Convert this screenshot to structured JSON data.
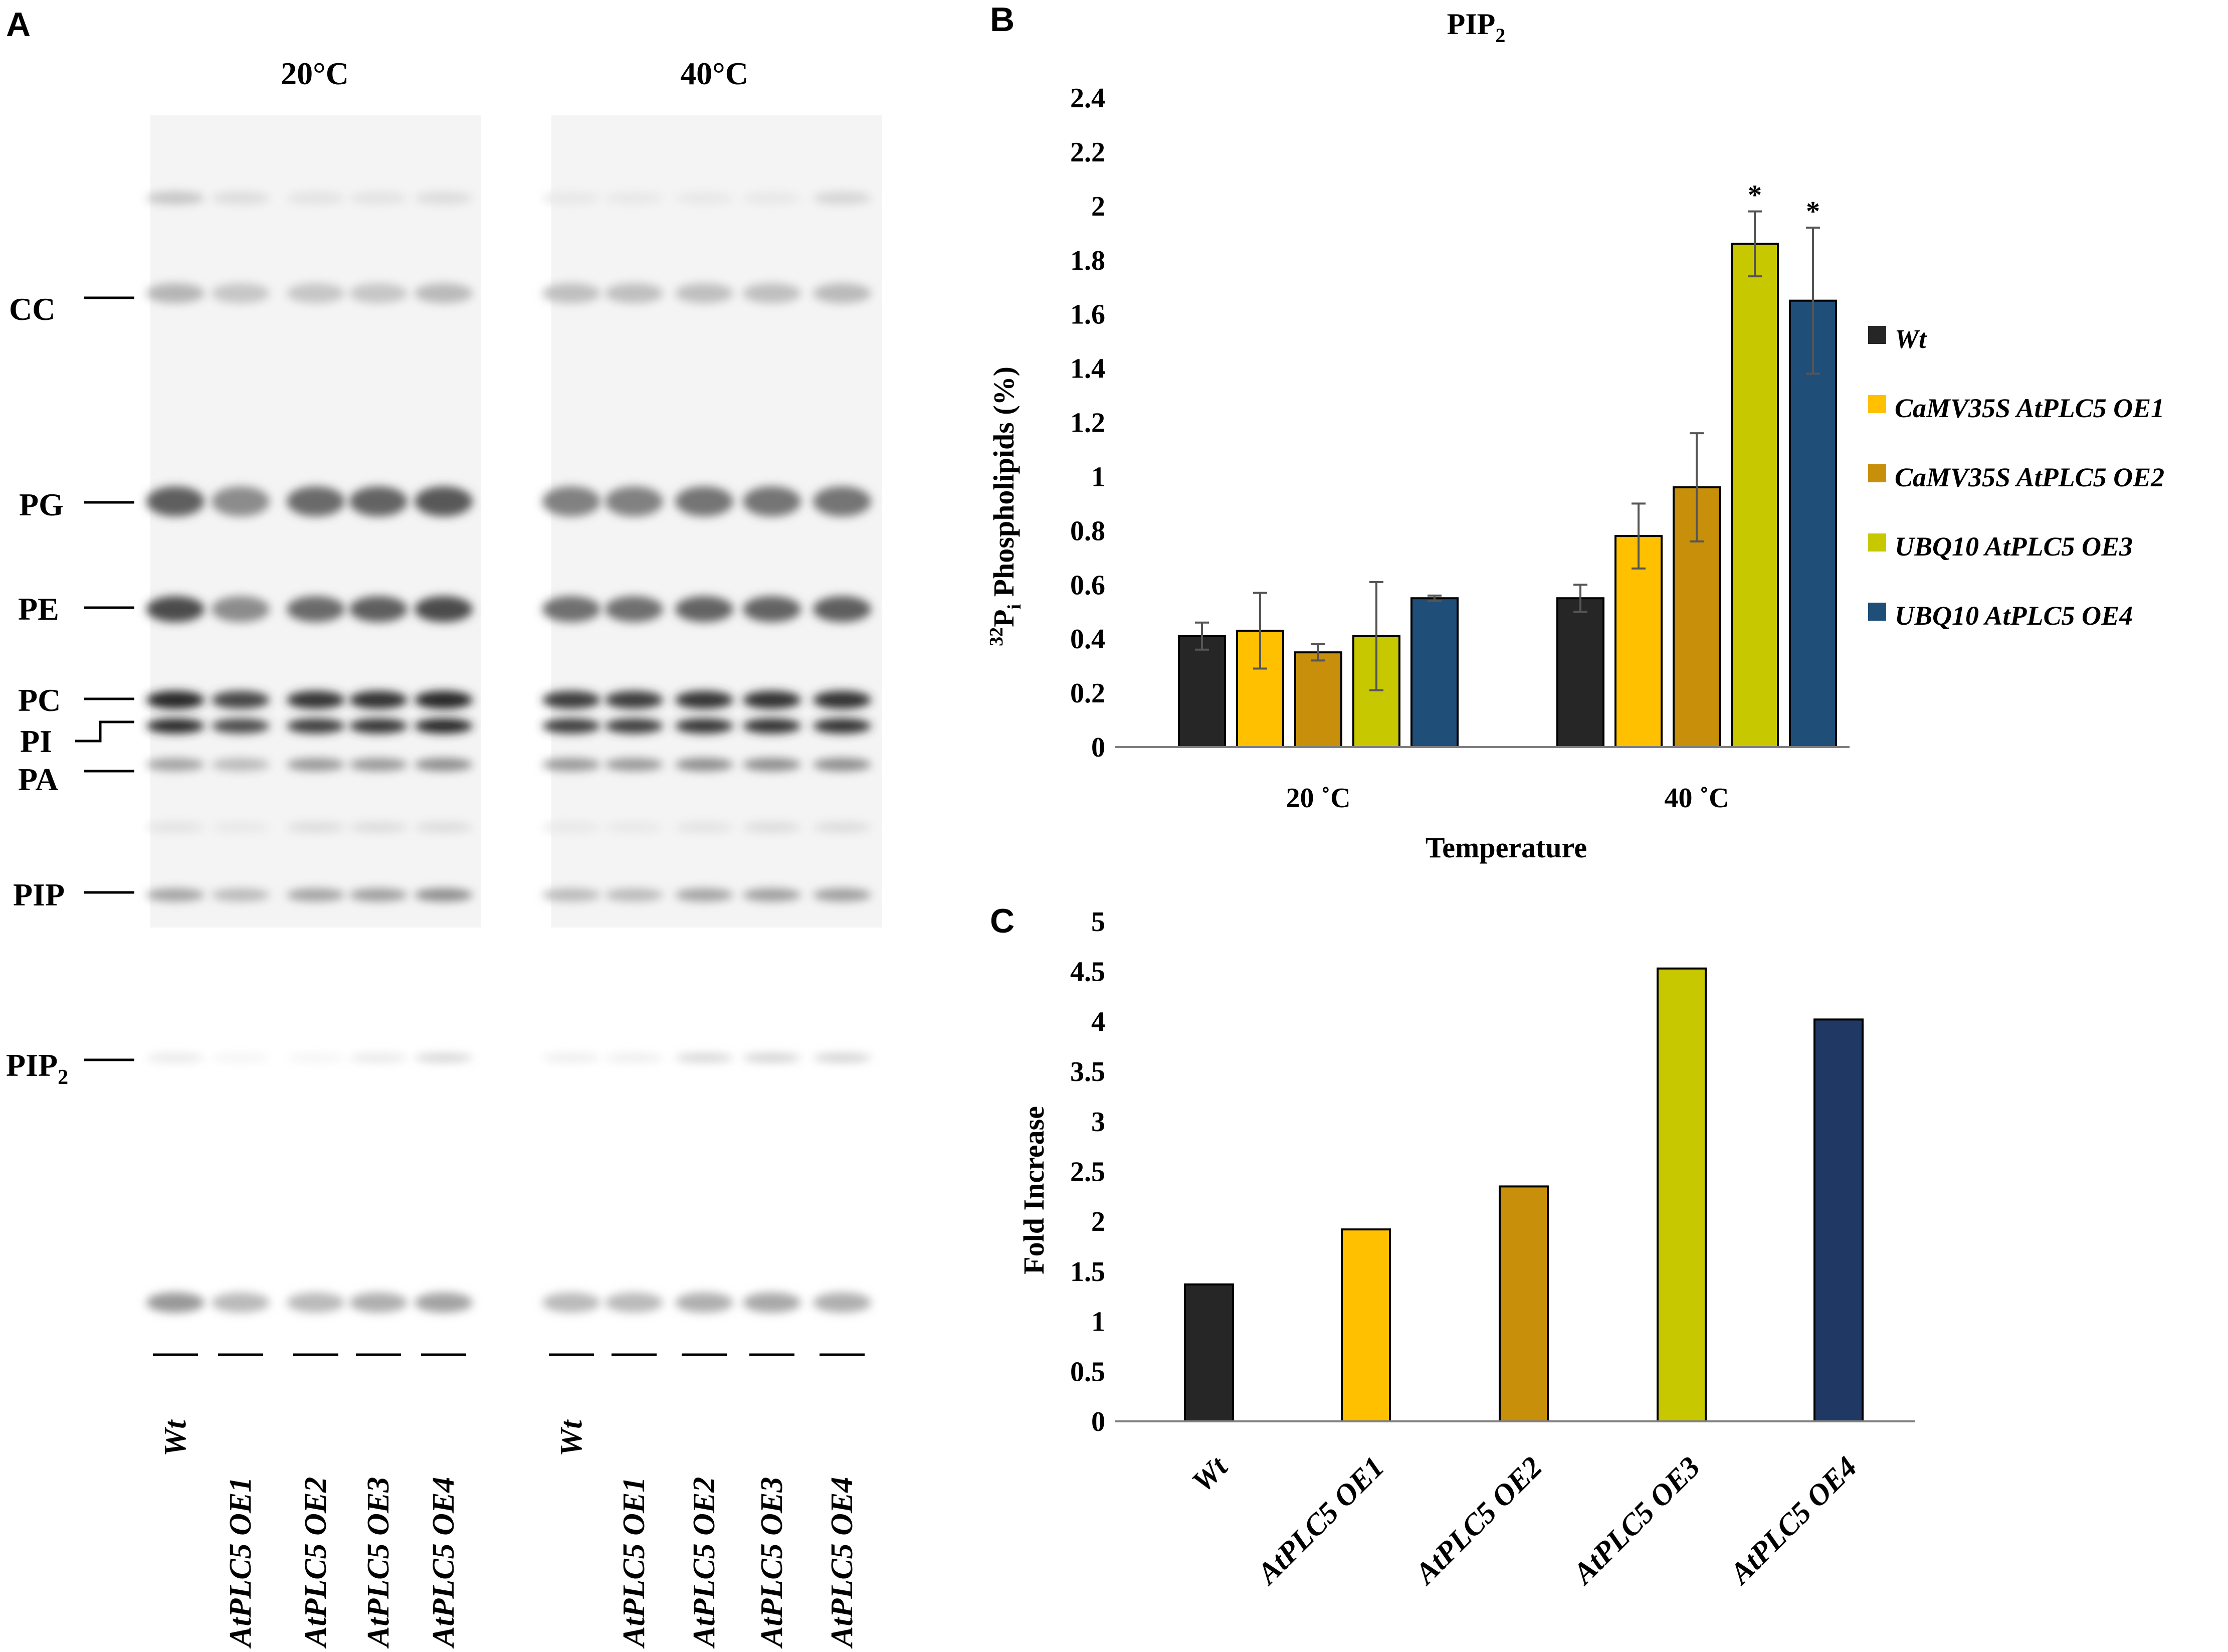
{
  "panels": {
    "a": {
      "letter": "A"
    },
    "b": {
      "letter": "B"
    },
    "c": {
      "letter": "C"
    }
  },
  "tlc": {
    "conditions": [
      "20°C",
      "40°C"
    ],
    "lipid_labels": [
      "CC",
      "PG",
      "PE",
      "PC",
      "PI",
      "PA",
      "PIP",
      "PIP2"
    ],
    "pip2_label": {
      "main": "PIP",
      "sub": "2"
    },
    "lane_labels": [
      "Wt",
      "AtPLC5 OE1",
      "AtPLC5 OE2",
      "AtPLC5 OE3",
      "AtPLC5 OE4"
    ]
  },
  "chart_data": [
    {
      "type": "bar",
      "title": {
        "main": "PIP",
        "sub": "2"
      },
      "xlabel": "Temperature",
      "ylabel": {
        "sup": "32",
        "main": "P",
        "sub": "i",
        "rest": " Phospholipids (%)"
      },
      "categories": [
        "20 ˚C",
        "40 ˚C"
      ],
      "ylim": [
        0,
        2.4
      ],
      "yticks": [
        "0",
        "0.2",
        "0.4",
        "0.6",
        "0.8",
        "1",
        "1.2",
        "1.4",
        "1.6",
        "1.8",
        "2",
        "2.2",
        "2.4"
      ],
      "legend_position": "right",
      "significance_marker": "*",
      "series": [
        {
          "name": "Wt",
          "color": "#262626",
          "values": [
            0.41,
            0.55
          ],
          "errors": [
            0.05,
            0.05
          ],
          "significant": [
            false,
            false
          ]
        },
        {
          "name": "CaMV35S AtPLC5 OE1",
          "color": "#ffc000",
          "values": [
            0.43,
            0.78
          ],
          "errors": [
            0.14,
            0.12
          ],
          "significant": [
            false,
            false
          ]
        },
        {
          "name": "CaMV35S AtPLC5 OE2",
          "color": "#c8900a",
          "values": [
            0.35,
            0.96
          ],
          "errors": [
            0.03,
            0.2
          ],
          "significant": [
            false,
            false
          ]
        },
        {
          "name": "UBQ10 AtPLC5 OE3",
          "color": "#c8c800",
          "values": [
            0.41,
            1.86
          ],
          "errors": [
            0.2,
            0.12
          ],
          "significant": [
            false,
            true
          ]
        },
        {
          "name": "UBQ10 AtPLC5 OE4",
          "color": "#1f4e79",
          "values": [
            0.55,
            1.65
          ],
          "errors": [
            0.01,
            0.27
          ],
          "significant": [
            false,
            true
          ]
        }
      ]
    },
    {
      "type": "bar",
      "title": "",
      "xlabel": "",
      "ylabel": "Fold Increase",
      "categories": [
        "Wt",
        "AtPLC5 OE1",
        "AtPLC5 OE2",
        "AtPLC5 OE3",
        "AtPLC5 OE4"
      ],
      "values": [
        1.37,
        1.92,
        2.35,
        4.53,
        4.02
      ],
      "colors": [
        "#262626",
        "#ffc000",
        "#c8900a",
        "#c8c800",
        "#1f3864"
      ],
      "ylim": [
        0,
        5
      ],
      "yticks": [
        "0",
        "0.5",
        "1",
        "1.5",
        "2",
        "2.5",
        "3",
        "3.5",
        "4",
        "4.5",
        "5"
      ]
    }
  ]
}
